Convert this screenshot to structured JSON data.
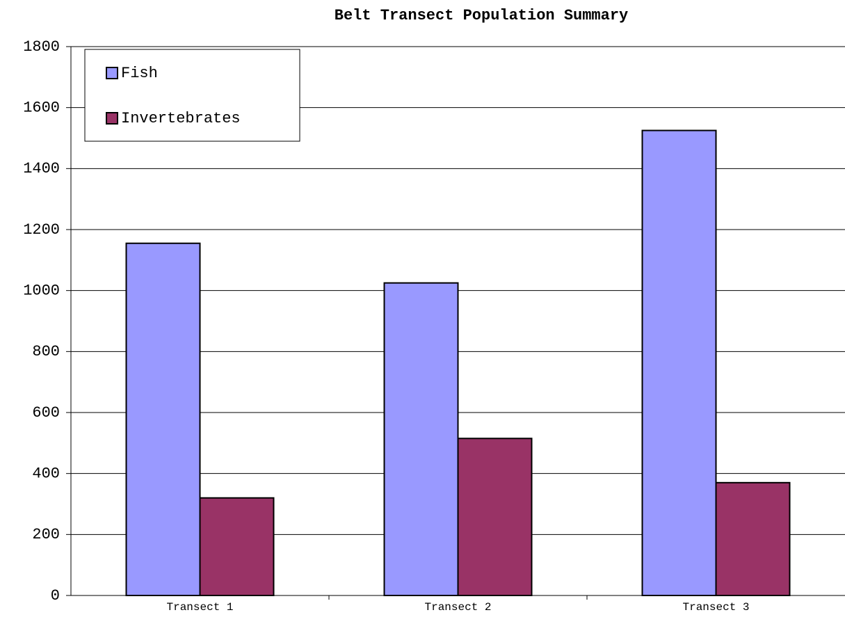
{
  "chart_data": {
    "type": "bar",
    "title": "Belt Transect Population Summary",
    "categories": [
      "Transect 1",
      "Transect 2",
      "Transect 3"
    ],
    "series": [
      {
        "name": "Fish",
        "color": "#9999ff",
        "values": [
          1155,
          1025,
          1525
        ]
      },
      {
        "name": "Invertebrates",
        "color": "#993366",
        "values": [
          320,
          515,
          370
        ]
      }
    ],
    "ylim": [
      0,
      1800
    ],
    "yticks": [
      0,
      200,
      400,
      600,
      800,
      1000,
      1200,
      1400,
      1600,
      1800
    ],
    "grid": true,
    "legend": "top-left"
  }
}
